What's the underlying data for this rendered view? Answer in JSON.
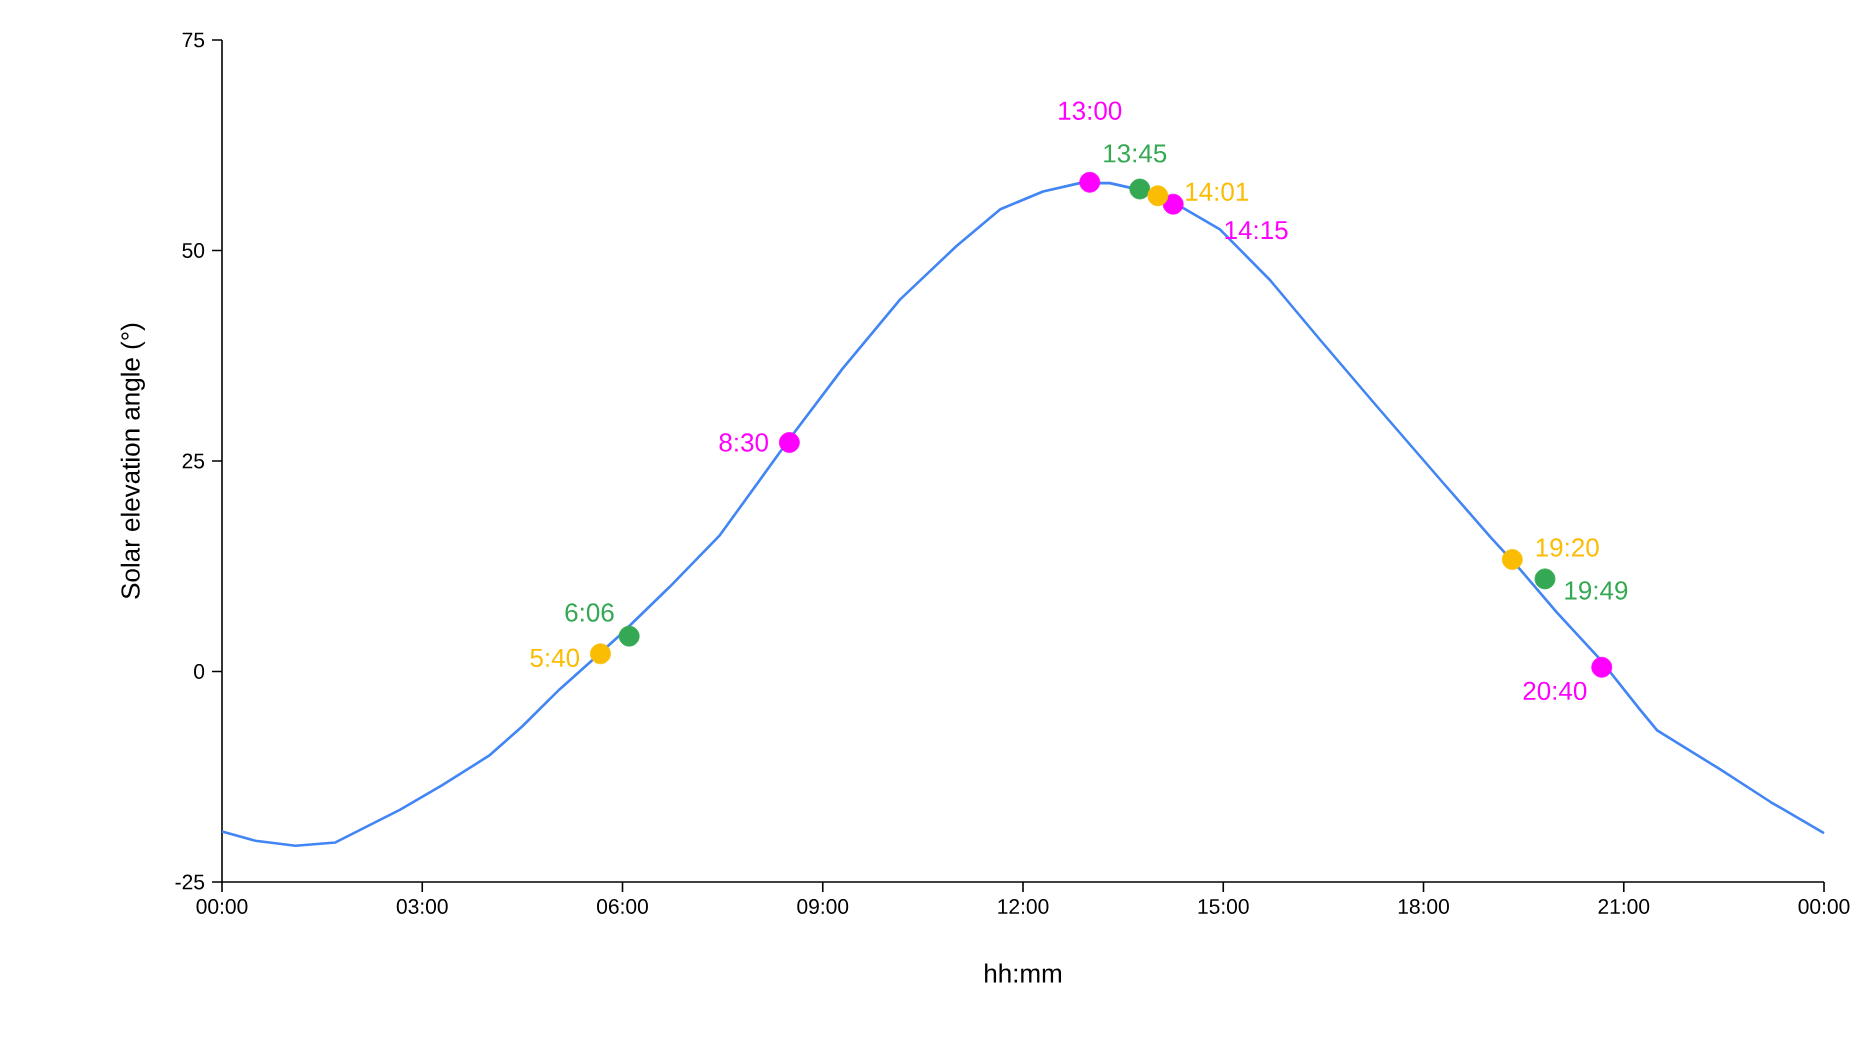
{
  "chart_data": {
    "type": "scatter",
    "xlabel": "hh:mm",
    "ylabel": "Solar elevation angle (°)",
    "xlim": [
      0,
      24
    ],
    "ylim": [
      -25,
      75
    ],
    "xticks": [
      {
        "value": 0,
        "label": "00:00"
      },
      {
        "value": 3,
        "label": "03:00"
      },
      {
        "value": 6,
        "label": "06:00"
      },
      {
        "value": 9,
        "label": "09:00"
      },
      {
        "value": 12,
        "label": "12:00"
      },
      {
        "value": 15,
        "label": "15:00"
      },
      {
        "value": 18,
        "label": "18:00"
      },
      {
        "value": 21,
        "label": "21:00"
      },
      {
        "value": 24,
        "label": "00:00"
      }
    ],
    "yticks": [
      -25,
      0,
      25,
      50,
      75
    ],
    "grid": false,
    "marker": "circle",
    "series": [
      {
        "type": "line",
        "marker": "none",
        "color": "#4285f4",
        "x": [
          0,
          0.5,
          1.1,
          1.7,
          2.67,
          3.3,
          4.0,
          4.5,
          5.06,
          5.5,
          5.96,
          6.7,
          7.46,
          8.5,
          9.3,
          10.16,
          11.0,
          11.66,
          12.3,
          12.85,
          13.3,
          13.75,
          14.3,
          14.95,
          15.7,
          16.45,
          17.3,
          18.25,
          19.0,
          19.45,
          20.0,
          20.65,
          21.24,
          21.5,
          22.44,
          23.2,
          24
        ],
        "values": [
          -19,
          -20.1,
          -20.7,
          -20.3,
          -16.4,
          -13.5,
          -10,
          -6.5,
          -2.1,
          1.0,
          4.3,
          10,
          16.2,
          27.6,
          36,
          44.2,
          50.5,
          54.9,
          57,
          58,
          58,
          57.2,
          55.5,
          52.5,
          46.5,
          39.4,
          31.5,
          22.8,
          16,
          12.1,
          7,
          1.4,
          -4.5,
          -7,
          -11.6,
          -15.5,
          -19.2
        ]
      },
      {
        "color": "#ff00ff",
        "x": [
          8.5,
          13.0,
          14.25,
          20.67
        ],
        "values": [
          27.2,
          58.1,
          55.5,
          0.5
        ]
      },
      {
        "color": "#34a853",
        "x": [
          6.1,
          13.75,
          19.82
        ],
        "values": [
          4.2,
          57.3,
          11
        ]
      },
      {
        "color": "#fbbc04",
        "x": [
          5.67,
          14.02,
          19.33
        ],
        "values": [
          2.1,
          56.5,
          13.3
        ]
      }
    ],
    "annotations": [
      {
        "text": "8:30",
        "x": 8.5,
        "y": 27.2
      },
      {
        "text": "13:00",
        "x": 13.0,
        "y": 58.1
      },
      {
        "text": "14:15",
        "x": 14.25,
        "y": 55.5
      },
      {
        "text": "20:40",
        "x": 20.67,
        "y": 0.5
      },
      {
        "text": "6:06",
        "x": 6.1,
        "y": 4.2
      },
      {
        "text": "13:45",
        "x": 13.75,
        "y": 57.3
      },
      {
        "text": "19:49",
        "x": 19.82,
        "y": 11
      },
      {
        "text": "5:40",
        "x": 5.67,
        "y": 2.1
      },
      {
        "text": "14:01",
        "x": 14.02,
        "y": 56.5
      },
      {
        "text": "19:20",
        "x": 19.33,
        "y": 13.3
      }
    ]
  }
}
